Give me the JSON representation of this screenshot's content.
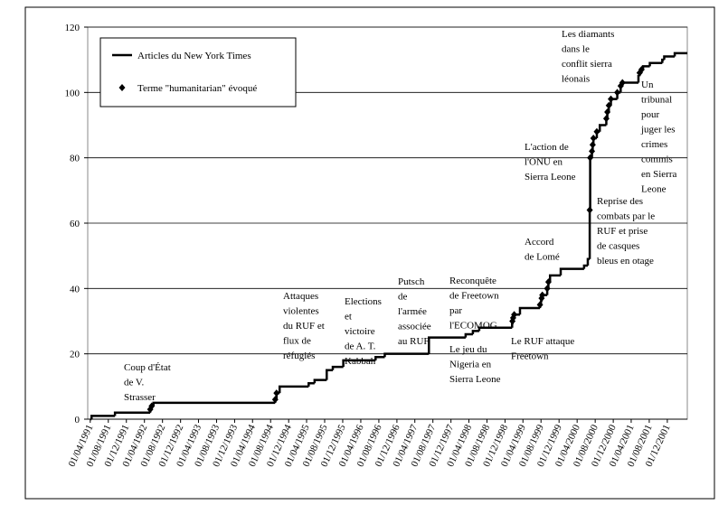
{
  "chart_data": {
    "type": "step-line",
    "series": [
      {
        "name": "Articles du New York Times",
        "color": "#000000",
        "x": [
          "01/04/1991",
          "10/04/1991",
          "15/09/1991",
          "10/05/1992",
          "20/05/1992",
          "01/06/1992",
          "01/09/1994",
          "10/09/1994",
          "01/10/1994",
          "15/04/1995",
          "25/05/1995",
          "15/08/1995",
          "25/09/1995",
          "05/12/1995",
          "10/07/1996",
          "10/09/1996",
          "05/07/1997",
          "10/03/1998",
          "28/04/1998",
          "10/06/1998",
          "18/01/1999",
          "20/01/1999",
          "25/01/1999",
          "01/02/1999",
          "12/03/1999",
          "25/07/1999",
          "01/08/1999",
          "05/08/1999",
          "10/08/1999",
          "12/09/1999",
          "20/09/1999",
          "01/10/1999",
          "12/12/1999",
          "18/05/2000",
          "12/06/2000",
          "25/06/2000",
          "28/06/2000",
          "10/07/2000",
          "15/07/2000",
          "20/07/2000",
          "12/08/2000",
          "01/09/2000",
          "15/10/2000",
          "22/10/2000",
          "01/11/2000",
          "15/11/2000",
          "28/12/2000",
          "20/01/2001",
          "01/02/2001",
          "20/05/2001",
          "28/05/2001",
          "10/06/2001",
          "20/06/2001",
          "05/08/2001",
          "28/10/2001",
          "10/11/2001",
          "20/01/2002"
        ],
        "values": [
          0,
          1,
          2,
          3,
          4,
          5,
          6,
          8,
          10,
          11,
          12,
          15,
          16,
          18,
          19,
          20,
          25,
          26,
          27,
          28,
          29,
          30,
          31,
          32,
          34,
          35,
          36,
          37,
          38,
          40,
          42,
          44,
          46,
          47,
          49,
          64,
          80,
          82,
          84,
          86,
          88,
          90,
          92,
          94,
          96,
          98,
          100,
          102,
          103,
          105,
          106,
          107,
          108,
          109,
          110,
          111,
          112
        ]
      },
      {
        "name": "Terme \"humanitarian\" évoqué",
        "color": "#000000",
        "x": [
          "10/05/1992",
          "20/05/1992",
          "01/09/1994",
          "10/09/1994",
          "20/01/1999",
          "25/01/1999",
          "01/02/1999",
          "25/07/1999",
          "05/08/1999",
          "10/08/1999",
          "12/09/1999",
          "20/09/1999",
          "25/06/2000",
          "28/06/2000",
          "10/07/2000",
          "15/07/2000",
          "20/07/2000",
          "12/08/2000",
          "15/10/2000",
          "22/10/2000",
          "01/11/2000",
          "15/11/2000",
          "28/12/2000",
          "20/01/2001",
          "01/02/2001",
          "28/05/2001",
          "10/06/2001"
        ],
        "values": [
          3,
          4,
          6,
          8,
          30,
          31,
          32,
          35,
          37,
          38,
          40,
          42,
          64,
          80,
          82,
          84,
          86,
          88,
          92,
          94,
          96,
          98,
          100,
          102,
          103,
          106,
          107
        ]
      }
    ],
    "xlim": [
      "15/03/1991",
      "15/04/2002"
    ],
    "xticks": [
      "01/04/1991",
      "01/08/1991",
      "01/12/1991",
      "01/04/1992",
      "01/08/1992",
      "01/12/1992",
      "01/04/1993",
      "01/08/1993",
      "01/12/1993",
      "01/04/1994",
      "01/08/1994",
      "01/12/1994",
      "01/04/1995",
      "01/08/1995",
      "01/12/1995",
      "01/04/1996",
      "01/08/1996",
      "01/12/1996",
      "01/04/1997",
      "01/08/1997",
      "01/12/1997",
      "01/04/1998",
      "01/08/1998",
      "01/12/1998",
      "01/04/1999",
      "01/08/1999",
      "01/12/1999",
      "01/04/2000",
      "01/08/2000",
      "01/12/2000",
      "01/04/2001",
      "01/08/2001",
      "01/12/2001"
    ],
    "ylim": [
      0,
      120
    ],
    "yticks": [
      0,
      20,
      40,
      60,
      80,
      100,
      120
    ],
    "grid": true,
    "annotations": [
      [
        "Coup d'État",
        "de V.",
        "Strasser"
      ],
      [
        "Attaques",
        "violentes",
        "du RUF et",
        "flux de",
        "réfugiés"
      ],
      [
        "Elections",
        "et",
        "victoire",
        "de A. T.",
        "Kabbah"
      ],
      [
        "Putsch",
        "de",
        "l'armée",
        "associée",
        "au RUF"
      ],
      [
        "Reconquête",
        "de Freetown",
        "par",
        "l'ECOMOG"
      ],
      [
        "Le jeu du",
        "Nigeria en",
        "Sierra Leone"
      ],
      [
        "Le RUF attaque",
        "Freetown"
      ],
      [
        "Accord",
        "de Lomé"
      ],
      [
        "L'action de",
        "l'ONU en",
        "Sierra Leone"
      ],
      [
        "Reprise des",
        "combats par le",
        "RUF et prise",
        "de casques",
        "bleus en otage"
      ],
      [
        "Les diamants",
        "dans le",
        "conflit sierra",
        "léonais"
      ],
      [
        "Un",
        "tribunal",
        "pour",
        "juger les",
        "crimes",
        "commis",
        "en Sierra",
        "Leone"
      ]
    ]
  }
}
